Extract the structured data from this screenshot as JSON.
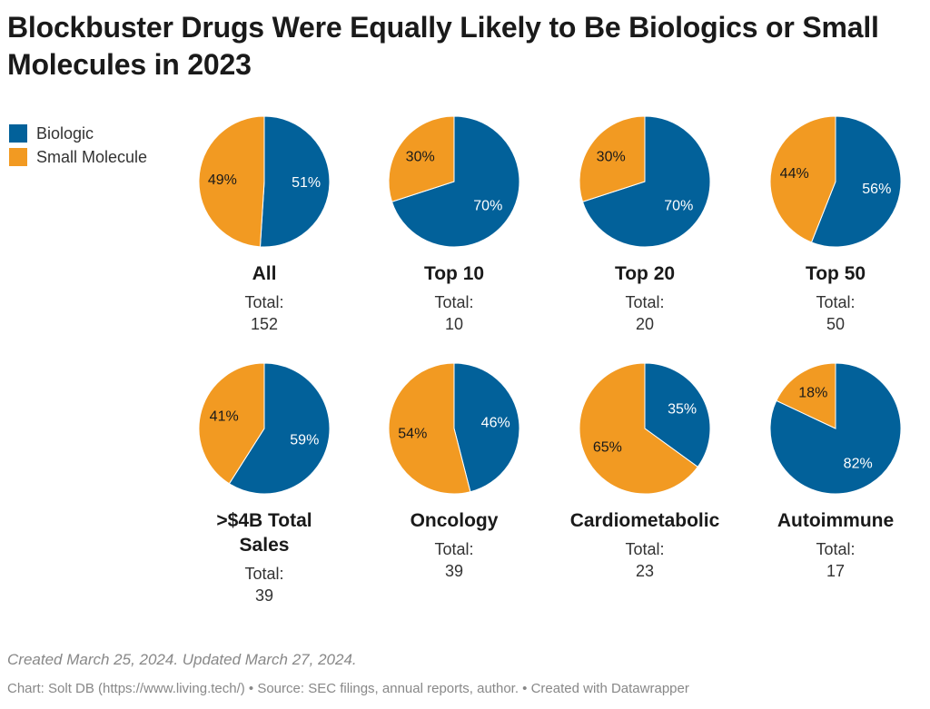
{
  "title": "Blockbuster Drugs Were Equally Likely to Be Biologics or Small Molecules in 2023",
  "legend": [
    {
      "name": "Biologic",
      "color": "#02619a"
    },
    {
      "name": "Small Molecule",
      "color": "#f29a22"
    }
  ],
  "total_label": "Total:",
  "chart_data": {
    "type": "pie",
    "series_names": [
      "Biologic",
      "Small Molecule"
    ],
    "colors": {
      "Biologic": "#02619a",
      "Small Molecule": "#f29a22"
    },
    "pies": [
      {
        "name": "All",
        "total": "152",
        "values": [
          51,
          49
        ],
        "labels": [
          "51%",
          "49%"
        ]
      },
      {
        "name": "Top 10",
        "total": "10",
        "values": [
          70,
          30
        ],
        "labels": [
          "70%",
          "30%"
        ]
      },
      {
        "name": "Top 20",
        "total": "20",
        "values": [
          70,
          30
        ],
        "labels": [
          "70%",
          "30%"
        ]
      },
      {
        "name": "Top 50",
        "total": "50",
        "values": [
          56,
          44
        ],
        "labels": [
          "56%",
          "44%"
        ]
      },
      {
        "name": ">$4B Total Sales",
        "total": "39",
        "values": [
          59,
          41
        ],
        "labels": [
          "59%",
          "41%"
        ]
      },
      {
        "name": "Oncology",
        "total": "39",
        "values": [
          46,
          54
        ],
        "labels": [
          "46%",
          "54%"
        ]
      },
      {
        "name": "Cardiometabolic",
        "total": "23",
        "values": [
          35,
          65
        ],
        "labels": [
          "35%",
          "65%"
        ]
      },
      {
        "name": "Autoimmune",
        "total": "17",
        "values": [
          82,
          18
        ],
        "labels": [
          "82%",
          "18%"
        ]
      }
    ]
  },
  "footer": {
    "note": "Created March 25, 2024. Updated March 27, 2024.",
    "source": "Chart: Solt DB (https://www.living.tech/) • Source: SEC filings, annual reports, author. • Created with Datawrapper"
  }
}
